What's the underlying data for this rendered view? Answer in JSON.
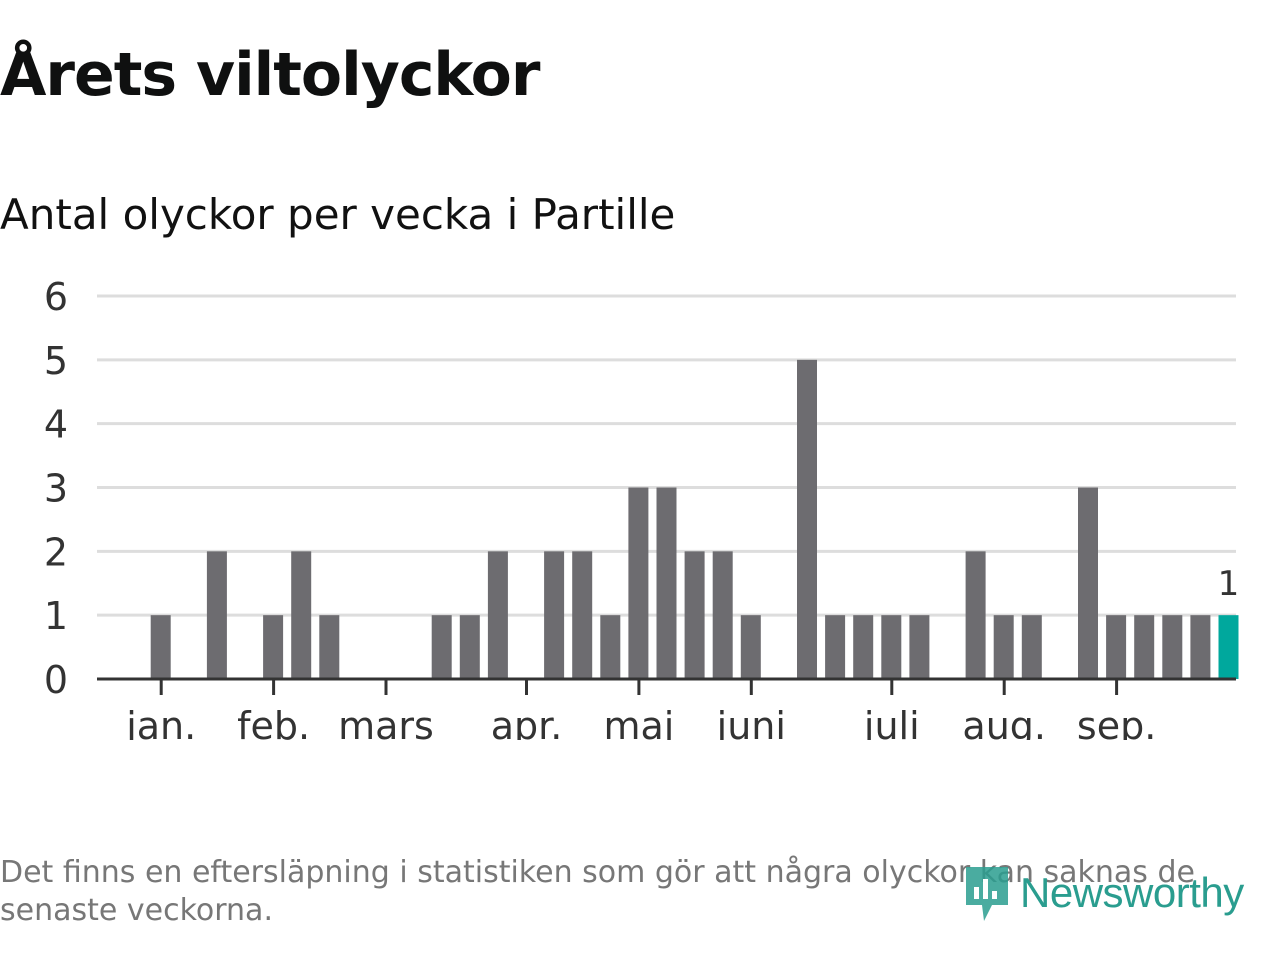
{
  "title": "Årets viltolyckor",
  "subtitle": "Antal olyckor per vecka i Partille",
  "note": "Det finns en eftersläpning i statistiken som gör att några olyckor kan saknas de senaste veckorna.",
  "logo": {
    "text": "Newsworthy",
    "color": "#2a9d8f"
  },
  "chart_data": {
    "type": "bar",
    "title": "Antal olyckor per vecka i Partille",
    "ylabel": "",
    "xlabel": "",
    "ylim": [
      0,
      6
    ],
    "yticks": [
      0,
      1,
      2,
      3,
      4,
      5,
      6
    ],
    "grid": true,
    "weeks": [
      1,
      2,
      3,
      4,
      5,
      6,
      7,
      8,
      9,
      10,
      11,
      12,
      13,
      14,
      15,
      16,
      17,
      18,
      19,
      20,
      21,
      22,
      23,
      24,
      25,
      26,
      27,
      28,
      29,
      30,
      31,
      32,
      33,
      34,
      35,
      36,
      37,
      38,
      39,
      40,
      41
    ],
    "values": [
      0,
      0,
      1,
      0,
      2,
      0,
      1,
      2,
      1,
      0,
      0,
      0,
      1,
      1,
      2,
      0,
      2,
      2,
      1,
      3,
      3,
      2,
      2,
      1,
      0,
      5,
      1,
      1,
      1,
      1,
      0,
      2,
      1,
      1,
      0,
      3,
      1,
      1,
      1,
      1,
      1
    ],
    "highlight_index": 40,
    "highlight_label": "1",
    "colors": {
      "bar": "#6d6c70",
      "highlight": "#00a89d",
      "grid": "#dddddd",
      "axis": "#333333"
    },
    "month_ticks": [
      {
        "label": "jan.",
        "week": 3
      },
      {
        "label": "feb.",
        "week": 7
      },
      {
        "label": "mars",
        "week": 11
      },
      {
        "label": "apr.",
        "week": 16
      },
      {
        "label": "maj",
        "week": 20
      },
      {
        "label": "juni",
        "week": 24
      },
      {
        "label": "juli",
        "week": 29
      },
      {
        "label": "aug.",
        "week": 33
      },
      {
        "label": "sep.",
        "week": 37
      }
    ]
  }
}
